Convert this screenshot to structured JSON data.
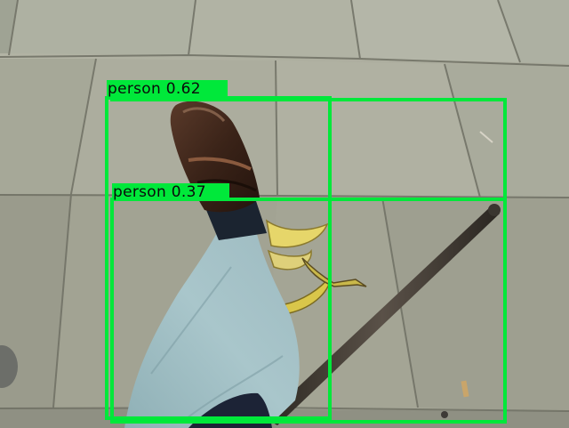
{
  "scene": {
    "description_objects": [
      "pavement",
      "leg",
      "shoe",
      "banana-peel",
      "walking-cane",
      "cigarette-butts"
    ]
  },
  "detections": [
    {
      "label": "person",
      "score": "0.62",
      "text": "person 0.62"
    },
    {
      "label": "person",
      "score": "0.37",
      "text": "person 0.37"
    }
  ],
  "colors": {
    "box": "#00e83a",
    "label_text": "#0b0b0b"
  }
}
